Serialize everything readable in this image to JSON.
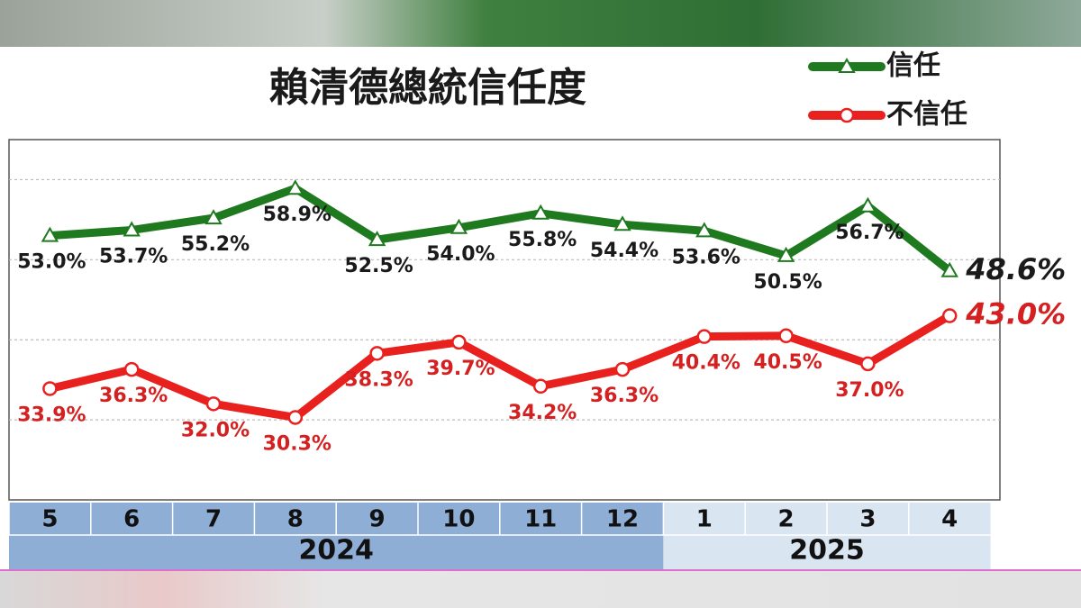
{
  "chart_data": {
    "type": "line",
    "title": "賴清德總統信任度",
    "groups": [
      {
        "label": "2024",
        "categories": [
          "5",
          "6",
          "7",
          "8",
          "9",
          "10",
          "11",
          "12"
        ]
      },
      {
        "label": "2025",
        "categories": [
          "1",
          "2",
          "3",
          "4"
        ]
      }
    ],
    "series": [
      {
        "name": "信任",
        "color": "#1f7a1f",
        "marker": "triangle",
        "values": [
          53.0,
          53.7,
          55.2,
          58.9,
          52.5,
          54.0,
          55.8,
          54.4,
          53.6,
          50.5,
          56.7,
          48.6
        ],
        "value_labels": [
          "53.0%",
          "53.7%",
          "55.2%",
          "58.9%",
          "52.5%",
          "54.0%",
          "55.8%",
          "54.4%",
          "53.6%",
          "50.5%",
          "56.7%",
          "48.6%"
        ]
      },
      {
        "name": "不信任",
        "color": "#e8201e",
        "marker": "circle",
        "values": [
          33.9,
          36.3,
          32.0,
          30.3,
          38.3,
          39.7,
          34.2,
          36.3,
          40.4,
          40.5,
          37.0,
          43.0
        ],
        "value_labels": [
          "33.9%",
          "36.3%",
          "32.0%",
          "30.3%",
          "38.3%",
          "39.7%",
          "34.2%",
          "36.3%",
          "40.4%",
          "40.5%",
          "37.0%",
          "43.0%"
        ]
      }
    ],
    "ylim": [
      20,
      65
    ],
    "yticks": [
      30,
      40,
      50,
      60
    ],
    "grid": true
  }
}
